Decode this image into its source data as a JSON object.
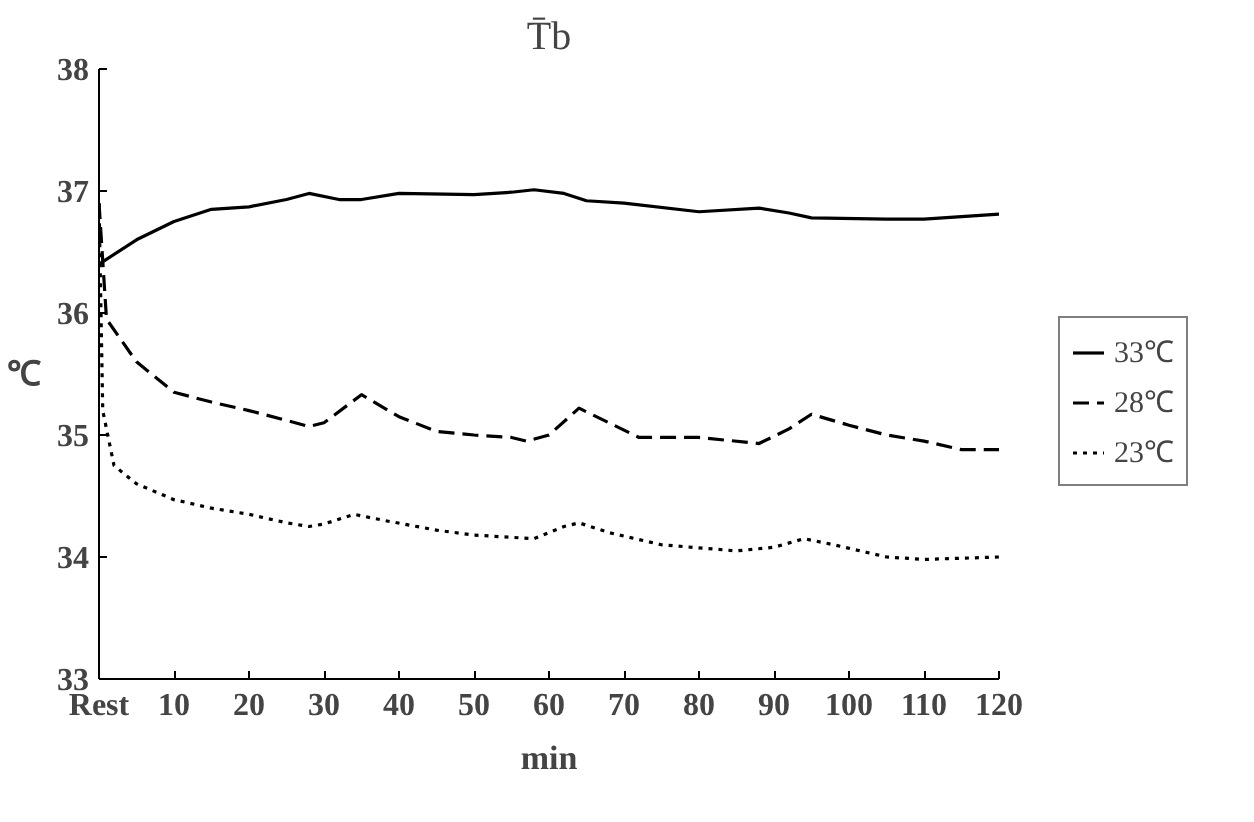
{
  "chart_data": {
    "type": "line",
    "title": "T̄b",
    "xlabel": "min",
    "ylabel": "℃",
    "xlim": [
      0,
      120
    ],
    "ylim": [
      33,
      38
    ],
    "xticks": [
      {
        "value": 0,
        "label": "Rest"
      },
      10,
      20,
      30,
      40,
      50,
      60,
      70,
      80,
      90,
      100,
      110,
      120
    ],
    "yticks": [
      33,
      34,
      35,
      36,
      37,
      38
    ],
    "grid": false,
    "legend": "right",
    "marker": "none",
    "series": [
      {
        "name": "33℃",
        "color": "#000000",
        "line_style": "solid",
        "x": [
          0,
          5,
          10,
          15,
          20,
          25,
          28,
          32,
          35,
          40,
          50,
          55,
          58,
          62,
          65,
          70,
          80,
          88,
          92,
          95,
          105,
          110,
          115,
          120
        ],
        "values": [
          36.4,
          36.6,
          36.75,
          36.85,
          36.87,
          36.93,
          36.98,
          36.93,
          36.93,
          36.98,
          36.97,
          36.99,
          37.01,
          36.98,
          36.92,
          36.9,
          36.83,
          36.86,
          36.82,
          36.78,
          36.77,
          36.77,
          36.79,
          36.81
        ]
      },
      {
        "name": "28℃",
        "color": "#000000",
        "line_style": "dashed",
        "x": [
          0,
          1,
          5,
          10,
          15,
          20,
          25,
          28,
          30,
          35,
          40,
          45,
          50,
          55,
          57,
          60,
          64,
          68,
          72,
          80,
          88,
          92,
          95,
          100,
          105,
          110,
          115,
          120
        ],
        "values": [
          36.9,
          35.95,
          35.6,
          35.35,
          35.27,
          35.2,
          35.12,
          35.07,
          35.1,
          35.33,
          35.15,
          35.03,
          35.0,
          34.98,
          34.95,
          35.0,
          35.22,
          35.1,
          34.98,
          34.98,
          34.93,
          35.05,
          35.17,
          35.08,
          35.0,
          34.95,
          34.88,
          34.88
        ]
      },
      {
        "name": "23℃",
        "color": "#000000",
        "line_style": "dotted",
        "x": [
          0,
          0.5,
          2,
          5,
          10,
          15,
          20,
          25,
          28,
          30,
          34,
          38,
          45,
          50,
          58,
          62,
          64,
          68,
          75,
          85,
          90,
          94,
          98,
          105,
          110,
          120
        ],
        "values": [
          36.9,
          35.2,
          34.75,
          34.6,
          34.47,
          34.4,
          34.35,
          34.28,
          34.25,
          34.27,
          34.35,
          34.3,
          34.22,
          34.18,
          34.15,
          34.25,
          34.28,
          34.2,
          34.1,
          34.05,
          34.08,
          34.15,
          34.1,
          34.0,
          33.98,
          34.0
        ]
      }
    ]
  }
}
